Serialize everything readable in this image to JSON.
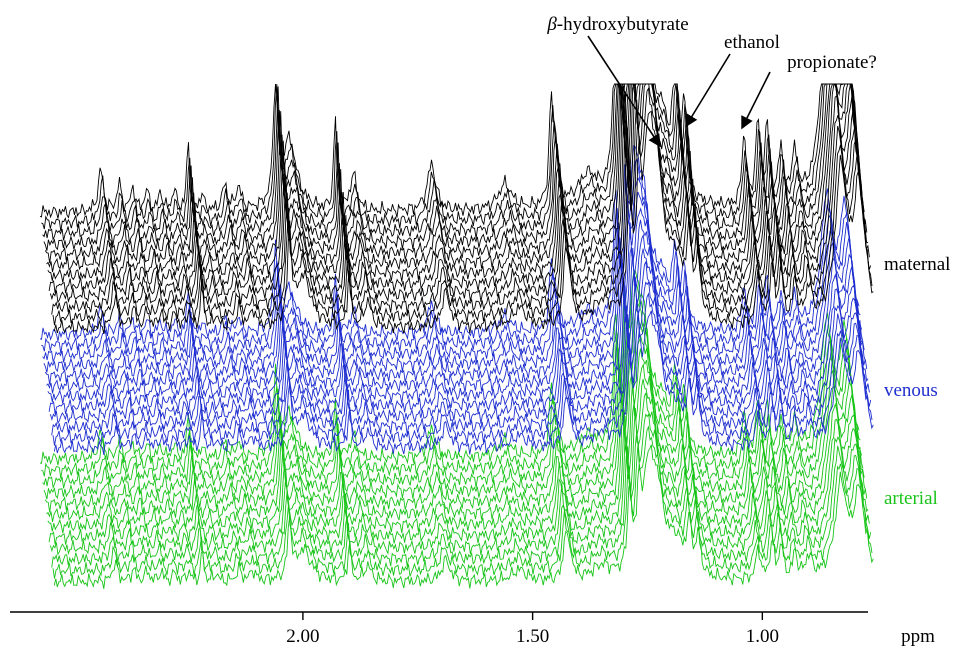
{
  "chart_data": {
    "type": "line",
    "subtype": "stacked NMR spectra",
    "title": "",
    "xlabel": "ppm",
    "ylabel": "",
    "x_reversed": true,
    "xlim": [
      2.52,
      0.77
    ],
    "x_ticks": [
      {
        "value": 2.0,
        "label": "2.00"
      },
      {
        "value": 1.5,
        "label": "1.50"
      },
      {
        "value": 1.0,
        "label": "1.00"
      }
    ],
    "grid": false,
    "group_labels_position": "right",
    "series": [
      {
        "name": "maternal",
        "color": "#000000",
        "count": 12
      },
      {
        "name": "venous",
        "color": "#1f2fd0",
        "count": 12
      },
      {
        "name": "arterial",
        "color": "#18c418",
        "count": 12
      }
    ],
    "peaks_ppm": [
      2.44,
      2.4,
      2.37,
      2.34,
      2.31,
      2.28,
      2.25,
      2.22,
      2.17,
      2.14,
      2.06,
      1.93,
      1.89,
      1.72,
      1.56,
      1.46,
      1.32,
      1.31,
      1.3,
      1.28,
      1.26,
      1.19,
      1.17,
      1.04,
      1.01,
      0.99,
      0.96,
      0.93,
      0.84
    ],
    "annotations": [
      {
        "text": "β-hydroxybutyrate",
        "prefix": "β",
        "suffix": "-hydroxybutyrate",
        "x_ppm": 1.27
      },
      {
        "text": "ethanol",
        "x_ppm": 1.18
      },
      {
        "text": "propionate?",
        "x_ppm": 1.04
      }
    ]
  }
}
